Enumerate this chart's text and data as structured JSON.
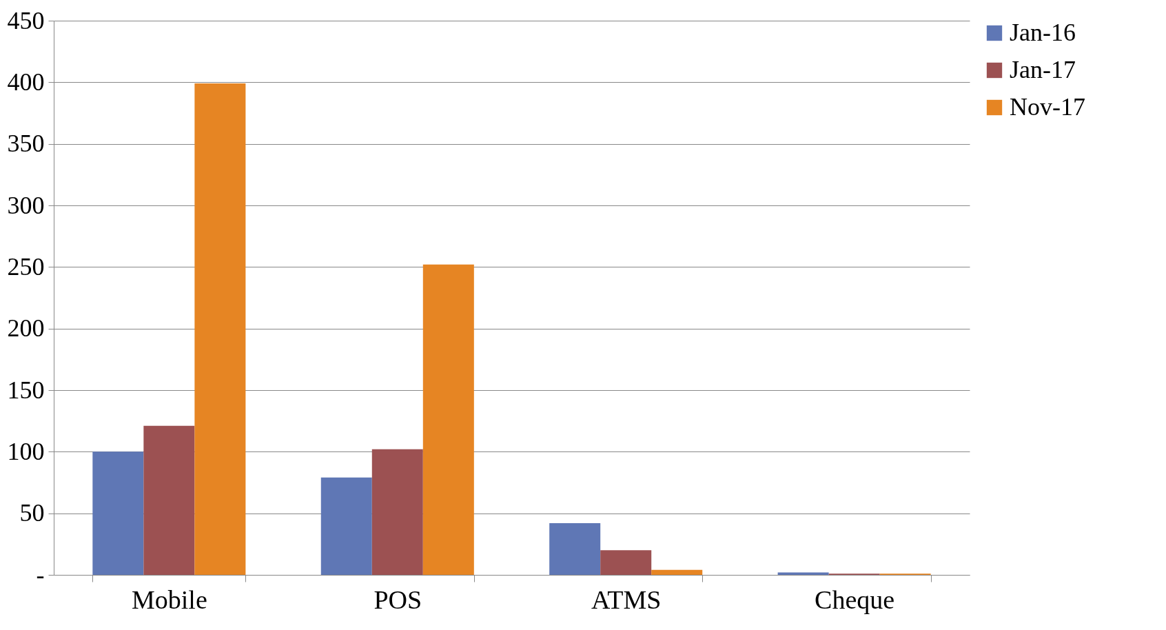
{
  "chart_data": {
    "type": "bar",
    "categories": [
      "Mobile",
      "POS",
      "ATMS",
      "Cheque"
    ],
    "series": [
      {
        "name": "Jan-16",
        "color": "#5f77b5",
        "values": [
          100,
          79,
          42,
          2
        ]
      },
      {
        "name": "Jan-17",
        "color": "#9c5152",
        "values": [
          121,
          102,
          20,
          1
        ]
      },
      {
        "name": "Nov-17",
        "color": "#e68523",
        "values": [
          399,
          252,
          4,
          1
        ]
      }
    ],
    "ylim": [
      0,
      450
    ],
    "yticks": [
      {
        "value": 0,
        "label": "-"
      },
      50,
      100,
      150,
      200,
      250,
      300,
      350,
      400,
      450
    ],
    "grid": "y",
    "legend": "right"
  }
}
